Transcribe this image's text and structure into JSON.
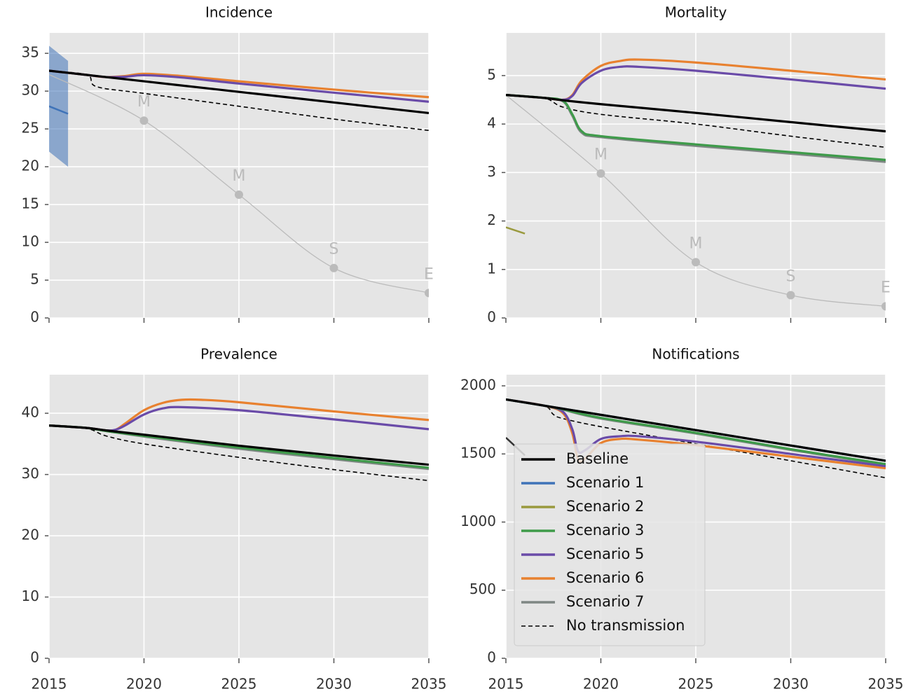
{
  "chart_data": [
    {
      "type": "line",
      "title": "Incidence",
      "xlim": [
        2015,
        2035
      ],
      "xticks": [
        2015,
        2020,
        2025,
        2030,
        2035
      ],
      "show_xtick_labels": false,
      "ylim": [
        0,
        37.7
      ],
      "yticks": [
        0,
        5,
        10,
        15,
        20,
        25,
        30,
        35
      ],
      "grid": true,
      "series": [
        {
          "name": "Baseline",
          "color": "#000000",
          "x": [
            2015,
            2017,
            2018,
            2020,
            2025,
            2030,
            2035
          ],
          "values": [
            32.7,
            32.14,
            31.86,
            31.3,
            29.9,
            28.5,
            27.1
          ]
        },
        {
          "name": "Scenario 5",
          "color": "#6a4ba8",
          "x": [
            2015,
            2017,
            2018,
            2019,
            2020,
            2022,
            2025,
            2030,
            2035
          ],
          "values": [
            32.7,
            32.14,
            31.86,
            31.9,
            32.1,
            31.8,
            31.0,
            29.8,
            28.6
          ]
        },
        {
          "name": "Scenario 6",
          "color": "#e8812f",
          "x": [
            2015,
            2017,
            2018,
            2019,
            2020,
            2022,
            2025,
            2030,
            2035
          ],
          "values": [
            32.7,
            32.14,
            31.86,
            32.0,
            32.3,
            32.0,
            31.3,
            30.2,
            29.2
          ]
        },
        {
          "name": "No transmission",
          "color": "#000000",
          "dash": true,
          "x": [
            2015,
            2017,
            2017.5,
            2020,
            2025,
            2030,
            2035
          ],
          "values": [
            32.7,
            32.14,
            30.6,
            29.7,
            28.0,
            26.3,
            24.8
          ]
        }
      ],
      "observed": {
        "color": "#3f73b8",
        "x": [
          2015,
          2016
        ],
        "values": [
          28,
          27
        ],
        "lower": [
          22,
          20
        ],
        "upper": [
          36,
          34
        ]
      },
      "targets": {
        "color": "#bbbbbb",
        "x": [
          2015,
          2020,
          2025,
          2030,
          2035
        ],
        "values": [
          32.2,
          26.1,
          16.3,
          6.6,
          3.3
        ],
        "labels": [
          null,
          "M",
          "M",
          "S",
          "E"
        ]
      }
    },
    {
      "type": "line",
      "title": "Mortality",
      "xlim": [
        2015,
        2035
      ],
      "xticks": [
        2015,
        2020,
        2025,
        2030,
        2035
      ],
      "show_xtick_labels": false,
      "ylim": [
        0,
        5.88
      ],
      "yticks": [
        0,
        1,
        2,
        3,
        4,
        5
      ],
      "grid": true,
      "series": [
        {
          "name": "Baseline",
          "color": "#000000",
          "x": [
            2015,
            2017,
            2018,
            2020,
            2025,
            2030,
            2035
          ],
          "values": [
            4.6,
            4.54,
            4.49,
            4.41,
            4.23,
            4.04,
            3.85
          ]
        },
        {
          "name": "Scenario 3",
          "color": "#3e9b4a",
          "x": [
            2015,
            2017,
            2018,
            2018.5,
            2019,
            2020,
            2025,
            2030,
            2035
          ],
          "values": [
            4.6,
            4.54,
            4.48,
            4.2,
            3.85,
            3.75,
            3.58,
            3.42,
            3.26
          ]
        },
        {
          "name": "Scenario 5",
          "color": "#6a4ba8",
          "x": [
            2015,
            2017,
            2018,
            2018.5,
            2019,
            2020,
            2021,
            2022,
            2025,
            2030,
            2035
          ],
          "values": [
            4.6,
            4.54,
            4.5,
            4.58,
            4.85,
            5.1,
            5.18,
            5.18,
            5.1,
            4.92,
            4.73
          ]
        },
        {
          "name": "Scenario 6",
          "color": "#e8812f",
          "x": [
            2015,
            2017,
            2018,
            2018.5,
            2019,
            2020,
            2021,
            2022,
            2025,
            2030,
            2035
          ],
          "values": [
            4.6,
            4.54,
            4.5,
            4.6,
            4.9,
            5.2,
            5.3,
            5.33,
            5.27,
            5.1,
            4.92
          ]
        },
        {
          "name": "Scenario 7",
          "color": "#7f8784",
          "x": [
            2015,
            2017,
            2018,
            2018.5,
            2019,
            2020,
            2025,
            2030,
            2035
          ],
          "values": [
            4.6,
            4.54,
            4.47,
            4.17,
            3.82,
            3.73,
            3.55,
            3.39,
            3.22
          ]
        },
        {
          "name": "No transmission",
          "color": "#000000",
          "dash": true,
          "x": [
            2015,
            2017,
            2018,
            2020,
            2025,
            2030,
            2035
          ],
          "values": [
            4.6,
            4.54,
            4.35,
            4.2,
            4.0,
            3.75,
            3.52
          ]
        }
      ],
      "observed": {
        "color": "#9a9a3e",
        "x": [
          2015,
          2016
        ],
        "values": [
          1.87,
          1.74
        ]
      },
      "targets": {
        "color": "#bbbbbb",
        "x": [
          2015,
          2020,
          2025,
          2030,
          2035
        ],
        "values": [
          4.6,
          2.98,
          1.15,
          0.47,
          0.24
        ],
        "labels": [
          null,
          "M",
          "M",
          "S",
          "E"
        ]
      }
    },
    {
      "type": "line",
      "title": "Prevalence",
      "xlim": [
        2015,
        2035
      ],
      "xticks": [
        2015,
        2020,
        2025,
        2030,
        2035
      ],
      "show_xtick_labels": true,
      "ylim": [
        0,
        46.3
      ],
      "yticks": [
        0,
        10,
        20,
        30,
        40
      ],
      "grid": true,
      "series": [
        {
          "name": "Baseline",
          "color": "#000000",
          "x": [
            2015,
            2017,
            2018,
            2020,
            2025,
            2030,
            2035
          ],
          "values": [
            38,
            37.6,
            37.2,
            36.5,
            34.7,
            33.1,
            31.6
          ]
        },
        {
          "name": "Scenario 3",
          "color": "#3e9b4a",
          "x": [
            2015,
            2017,
            2018,
            2020,
            2025,
            2030,
            2035
          ],
          "values": [
            38,
            37.6,
            37.1,
            36.3,
            34.4,
            32.7,
            31.1
          ]
        },
        {
          "name": "Scenario 5",
          "color": "#6a4ba8",
          "x": [
            2015,
            2017,
            2018,
            2018.5,
            2019,
            2020,
            2021,
            2022,
            2025,
            2030,
            2035
          ],
          "values": [
            38,
            37.6,
            37.2,
            37.3,
            38.0,
            39.8,
            40.8,
            41.0,
            40.5,
            39.0,
            37.4
          ]
        },
        {
          "name": "Scenario 6",
          "color": "#e8812f",
          "x": [
            2015,
            2017,
            2018,
            2018.5,
            2019,
            2020,
            2021,
            2022,
            2023,
            2025,
            2030,
            2035
          ],
          "values": [
            38,
            37.6,
            37.2,
            37.3,
            38.3,
            40.5,
            41.7,
            42.2,
            42.2,
            41.8,
            40.3,
            38.9
          ]
        },
        {
          "name": "Scenario 7",
          "color": "#7f8784",
          "x": [
            2015,
            2017,
            2018,
            2020,
            2025,
            2030,
            2035
          ],
          "values": [
            38,
            37.6,
            37.1,
            36.2,
            34.2,
            32.5,
            30.9
          ]
        },
        {
          "name": "No transmission",
          "color": "#000000",
          "dash": true,
          "x": [
            2015,
            2017,
            2018,
            2020,
            2025,
            2030,
            2035
          ],
          "values": [
            38,
            37.5,
            36.3,
            35.0,
            32.8,
            30.8,
            29.0
          ]
        }
      ]
    },
    {
      "type": "line",
      "title": "Notifications",
      "xlim": [
        2015,
        2035
      ],
      "xticks": [
        2015,
        2020,
        2025,
        2030,
        2035
      ],
      "show_xtick_labels": true,
      "ylim": [
        0,
        2082
      ],
      "yticks": [
        0,
        500,
        1000,
        1500,
        2000
      ],
      "grid": true,
      "legend": "lower left",
      "series": [
        {
          "name": "Baseline",
          "color": "#000000",
          "x": [
            2015,
            2017,
            2018,
            2020,
            2025,
            2030,
            2035
          ],
          "values": [
            1900,
            1855,
            1832,
            1787,
            1675,
            1562,
            1450
          ]
        },
        {
          "name": "Scenario 1",
          "color": "#3f73b8",
          "x": [
            2015,
            2017,
            2018,
            2020,
            2025,
            2030,
            2035
          ],
          "values": [
            1900,
            1855,
            1832,
            1787,
            1675,
            1562,
            1450
          ]
        },
        {
          "name": "Scenario 2",
          "color": "#9a9a3e",
          "x": [
            2015,
            2017,
            2018,
            2020,
            2025,
            2030,
            2035
          ],
          "values": [
            1900,
            1855,
            1832,
            1787,
            1675,
            1562,
            1450
          ]
        },
        {
          "name": "Scenario 3",
          "color": "#3e9b4a",
          "x": [
            2015,
            2017,
            2018,
            2020,
            2025,
            2030,
            2035
          ],
          "values": [
            1900,
            1855,
            1828,
            1765,
            1655,
            1535,
            1425
          ]
        },
        {
          "name": "Scenario 5",
          "color": "#6a4ba8",
          "x": [
            2015,
            2017,
            2018,
            2018.5,
            2018.8,
            2019.2,
            2020,
            2021,
            2022,
            2025,
            2030,
            2035
          ],
          "values": [
            1900,
            1855,
            1810,
            1680,
            1520,
            1530,
            1610,
            1630,
            1630,
            1590,
            1500,
            1410
          ]
        },
        {
          "name": "Scenario 6",
          "color": "#e8812f",
          "x": [
            2015,
            2017,
            2018,
            2018.5,
            2018.8,
            2019.2,
            2020,
            2021,
            2022,
            2025,
            2030,
            2035
          ],
          "values": [
            1900,
            1855,
            1800,
            1650,
            1460,
            1470,
            1580,
            1610,
            1605,
            1565,
            1480,
            1395
          ]
        },
        {
          "name": "Scenario 7",
          "color": "#7f8784",
          "x": [
            2015,
            2017,
            2018,
            2020,
            2025,
            2030,
            2035
          ],
          "values": [
            1900,
            1855,
            1825,
            1760,
            1650,
            1530,
            1420
          ]
        },
        {
          "name": "No transmission",
          "color": "#000000",
          "dash": true,
          "x": [
            2015,
            2017,
            2017.5,
            2018,
            2020,
            2025,
            2030,
            2035
          ],
          "values": [
            1900,
            1855,
            1790,
            1760,
            1700,
            1575,
            1450,
            1325
          ]
        }
      ],
      "observed": {
        "color": "#333333",
        "x": [
          2015,
          2016
        ],
        "values": [
          1620,
          1490
        ]
      }
    }
  ]
}
